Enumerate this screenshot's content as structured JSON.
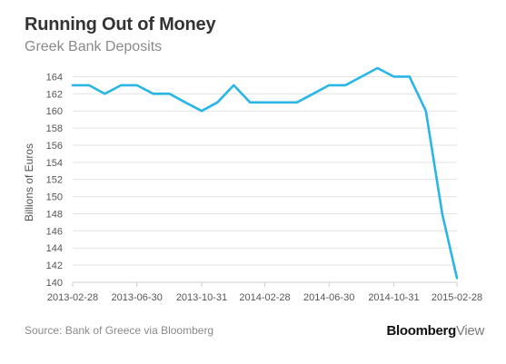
{
  "header": {
    "title": "Running Out of Money",
    "subtitle": "Greek Bank Deposits"
  },
  "footer": {
    "source": "Source: Bank of Greece via Bloomberg",
    "logo_brand": "Bloomberg",
    "logo_view": "View"
  },
  "colors": {
    "line": "#29b6e6",
    "grid": "#e3e3e3",
    "axis": "#cccccc",
    "text": "#555555"
  },
  "chart_data": {
    "type": "line",
    "title": "Running Out of Money",
    "subtitle": "Greek Bank Deposits",
    "xlabel": "",
    "ylabel": "Billions of Euros",
    "ylim": [
      140,
      165
    ],
    "yticks": [
      140,
      142,
      144,
      146,
      148,
      150,
      152,
      154,
      156,
      158,
      160,
      162,
      164
    ],
    "xlim": [
      "2013-02-28",
      "2015-02-28"
    ],
    "xticks": [
      "2013-02-28",
      "2013-06-30",
      "2013-10-31",
      "2014-02-28",
      "2014-06-30",
      "2014-10-31",
      "2015-02-28"
    ],
    "grid": true,
    "series": [
      {
        "x": [
          "2013-02-28",
          "2013-03-31",
          "2013-04-30",
          "2013-05-31",
          "2013-06-30",
          "2013-07-31",
          "2013-08-31",
          "2013-09-30",
          "2013-10-31",
          "2013-11-30",
          "2013-12-31",
          "2014-01-31",
          "2014-02-28",
          "2014-03-31",
          "2014-04-30",
          "2014-05-31",
          "2014-06-30",
          "2014-07-31",
          "2014-08-31",
          "2014-09-30",
          "2014-10-31",
          "2014-11-30",
          "2014-12-31",
          "2015-01-31",
          "2015-02-28"
        ],
        "values": [
          163,
          163,
          162,
          163,
          163,
          162,
          162,
          161,
          160,
          161,
          163,
          161,
          161,
          161,
          161,
          162,
          163,
          163,
          164,
          165,
          164,
          164,
          160,
          148,
          140.5
        ]
      }
    ]
  }
}
